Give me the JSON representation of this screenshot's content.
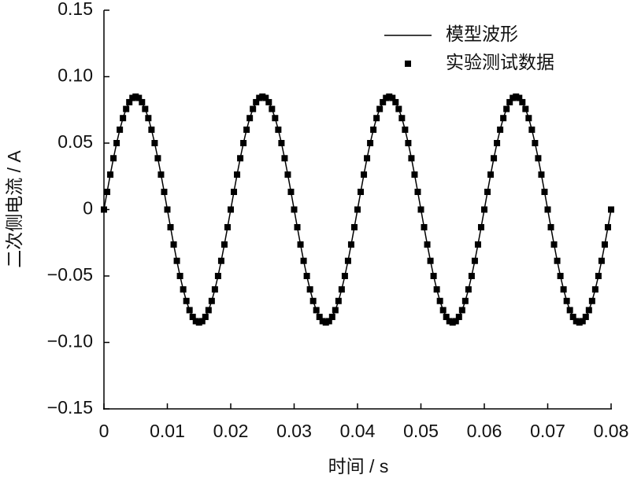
{
  "chart_data": {
    "type": "line",
    "xlabel": "时间 / s",
    "ylabel": "二次侧电流 / A",
    "xlim": [
      0,
      0.08
    ],
    "xticks": [
      0,
      0.01,
      0.02,
      0.03,
      0.04,
      0.05,
      0.06,
      0.07,
      0.08
    ],
    "ylim": [
      -0.15,
      0.15
    ],
    "yticks": [
      {
        "value": -0.15,
        "label": "−0.15"
      },
      {
        "value": -0.1,
        "label": "−0.10"
      },
      {
        "value": -0.05,
        "label": "−0.05"
      },
      0,
      0.05,
      {
        "value": 0.1,
        "label": "0.10"
      },
      0.15
    ],
    "legend": "upper right",
    "x": [
      0,
      0.0005,
      0.001,
      0.0015,
      0.002,
      0.0025,
      0.003,
      0.0035,
      0.004,
      0.0045,
      0.005,
      0.0055,
      0.006,
      0.0065,
      0.007,
      0.0075,
      0.008,
      0.0085,
      0.009,
      0.0095,
      0.01,
      0.0105,
      0.011,
      0.0115,
      0.012,
      0.0125,
      0.013,
      0.0135,
      0.014,
      0.0145,
      0.015,
      0.0155,
      0.016,
      0.0165,
      0.017,
      0.0175,
      0.018,
      0.0185,
      0.019,
      0.0195,
      0.02,
      0.0205,
      0.021,
      0.0215,
      0.022,
      0.0225,
      0.023,
      0.0235,
      0.024,
      0.0245,
      0.025,
      0.0255,
      0.026,
      0.0265,
      0.027,
      0.0275,
      0.028,
      0.0285,
      0.029,
      0.0295,
      0.03,
      0.0305,
      0.031,
      0.0315,
      0.032,
      0.0325,
      0.033,
      0.0335,
      0.034,
      0.0345,
      0.035,
      0.0355,
      0.036,
      0.0365,
      0.037,
      0.0375,
      0.038,
      0.0385,
      0.039,
      0.0395,
      0.04,
      0.0405,
      0.041,
      0.0415,
      0.042,
      0.0425,
      0.043,
      0.0435,
      0.044,
      0.0445,
      0.045,
      0.0455,
      0.046,
      0.0465,
      0.047,
      0.0475,
      0.048,
      0.0485,
      0.049,
      0.0495,
      0.05,
      0.0505,
      0.051,
      0.0515,
      0.052,
      0.0525,
      0.053,
      0.0535,
      0.054,
      0.0545,
      0.055,
      0.0555,
      0.056,
      0.0565,
      0.057,
      0.0575,
      0.058,
      0.0585,
      0.059,
      0.0595,
      0.06,
      0.0605,
      0.061,
      0.0615,
      0.062,
      0.0625,
      0.063,
      0.0635,
      0.064,
      0.0645,
      0.065,
      0.0655,
      0.066,
      0.0665,
      0.067,
      0.0675,
      0.068,
      0.0685,
      0.069,
      0.0695,
      0.07,
      0.0705,
      0.071,
      0.0715,
      0.072,
      0.0725,
      0.073,
      0.0735,
      0.074,
      0.0745,
      0.075,
      0.0755,
      0.076,
      0.0765,
      0.077,
      0.0775,
      0.078,
      0.0785,
      0.079,
      0.0795,
      0.08
    ],
    "series": [
      {
        "name": "模型波形",
        "color": "#000000",
        "mode": "line",
        "values": [
          0,
          0.0133,
          0.0263,
          0.0386,
          0.05,
          0.0601,
          0.0688,
          0.0757,
          0.0808,
          0.084,
          0.085,
          0.084,
          0.0808,
          0.0757,
          0.0688,
          0.0601,
          0.05,
          0.0386,
          0.0263,
          0.0133,
          0,
          -0.0133,
          -0.0263,
          -0.0386,
          -0.05,
          -0.0601,
          -0.0688,
          -0.0757,
          -0.0808,
          -0.084,
          -0.085,
          -0.084,
          -0.0808,
          -0.0757,
          -0.0688,
          -0.0601,
          -0.05,
          -0.0386,
          -0.0263,
          -0.0133,
          0,
          0.0133,
          0.0263,
          0.0386,
          0.05,
          0.0601,
          0.0688,
          0.0757,
          0.0808,
          0.084,
          0.085,
          0.084,
          0.0808,
          0.0757,
          0.0688,
          0.0601,
          0.05,
          0.0386,
          0.0263,
          0.0133,
          0,
          -0.0133,
          -0.0263,
          -0.0386,
          -0.05,
          -0.0601,
          -0.0688,
          -0.0757,
          -0.0808,
          -0.084,
          -0.085,
          -0.084,
          -0.0808,
          -0.0757,
          -0.0688,
          -0.0601,
          -0.05,
          -0.0386,
          -0.0263,
          -0.0133,
          0,
          0.0133,
          0.0263,
          0.0386,
          0.05,
          0.0601,
          0.0688,
          0.0757,
          0.0808,
          0.084,
          0.085,
          0.084,
          0.0808,
          0.0757,
          0.0688,
          0.0601,
          0.05,
          0.0386,
          0.0263,
          0.0133,
          0,
          -0.0133,
          -0.0263,
          -0.0386,
          -0.05,
          -0.0601,
          -0.0688,
          -0.0757,
          -0.0808,
          -0.084,
          -0.085,
          -0.084,
          -0.0808,
          -0.0757,
          -0.0688,
          -0.0601,
          -0.05,
          -0.0386,
          -0.0263,
          -0.0133,
          0,
          0.0133,
          0.0263,
          0.0386,
          0.05,
          0.0601,
          0.0688,
          0.0757,
          0.0808,
          0.084,
          0.085,
          0.084,
          0.0808,
          0.0757,
          0.0688,
          0.0601,
          0.05,
          0.0386,
          0.0263,
          0.0133,
          0,
          -0.0133,
          -0.0263,
          -0.0386,
          -0.05,
          -0.0601,
          -0.0688,
          -0.0757,
          -0.0808,
          -0.084,
          -0.085,
          -0.084,
          -0.0808,
          -0.0757,
          -0.0688,
          -0.0601,
          -0.05,
          -0.0386,
          -0.0263,
          -0.0133,
          0
        ]
      },
      {
        "name": "实验测试数据",
        "color": "#000000",
        "mode": "markers",
        "values": [
          0,
          0.0133,
          0.0263,
          0.0386,
          0.05,
          0.0601,
          0.0688,
          0.0757,
          0.0808,
          0.084,
          0.085,
          0.084,
          0.0808,
          0.0757,
          0.0688,
          0.0601,
          0.05,
          0.0386,
          0.0263,
          0.0133,
          0,
          -0.0133,
          -0.0263,
          -0.0386,
          -0.05,
          -0.0601,
          -0.0688,
          -0.0757,
          -0.0808,
          -0.084,
          -0.085,
          -0.084,
          -0.0808,
          -0.0757,
          -0.0688,
          -0.0601,
          -0.05,
          -0.0386,
          -0.0263,
          -0.0133,
          0,
          0.0133,
          0.0263,
          0.0386,
          0.05,
          0.0601,
          0.0688,
          0.0757,
          0.0808,
          0.084,
          0.085,
          0.084,
          0.0808,
          0.0757,
          0.0688,
          0.0601,
          0.05,
          0.0386,
          0.0263,
          0.0133,
          0,
          -0.0133,
          -0.0263,
          -0.0386,
          -0.05,
          -0.0601,
          -0.0688,
          -0.0757,
          -0.0808,
          -0.084,
          -0.085,
          -0.084,
          -0.0808,
          -0.0757,
          -0.0688,
          -0.0601,
          -0.05,
          -0.0386,
          -0.0263,
          -0.0133,
          0,
          0.0133,
          0.0263,
          0.0386,
          0.05,
          0.0601,
          0.0688,
          0.0757,
          0.0808,
          0.084,
          0.085,
          0.084,
          0.0808,
          0.0757,
          0.0688,
          0.0601,
          0.05,
          0.0386,
          0.0263,
          0.0133,
          0,
          -0.0133,
          -0.0263,
          -0.0386,
          -0.05,
          -0.0601,
          -0.0688,
          -0.0757,
          -0.0808,
          -0.084,
          -0.085,
          -0.084,
          -0.0808,
          -0.0757,
          -0.0688,
          -0.0601,
          -0.05,
          -0.0386,
          -0.0263,
          -0.0133,
          0,
          0.0133,
          0.0263,
          0.0386,
          0.05,
          0.0601,
          0.0688,
          0.0757,
          0.0808,
          0.084,
          0.085,
          0.084,
          0.0808,
          0.0757,
          0.0688,
          0.0601,
          0.05,
          0.0386,
          0.0263,
          0.0133,
          0,
          -0.0133,
          -0.0263,
          -0.0386,
          -0.05,
          -0.0601,
          -0.0688,
          -0.0757,
          -0.0808,
          -0.084,
          -0.085,
          -0.084,
          -0.0808,
          -0.0757,
          -0.0688,
          -0.0601,
          -0.05,
          -0.0386,
          -0.0263,
          -0.0133,
          0
        ]
      }
    ]
  }
}
